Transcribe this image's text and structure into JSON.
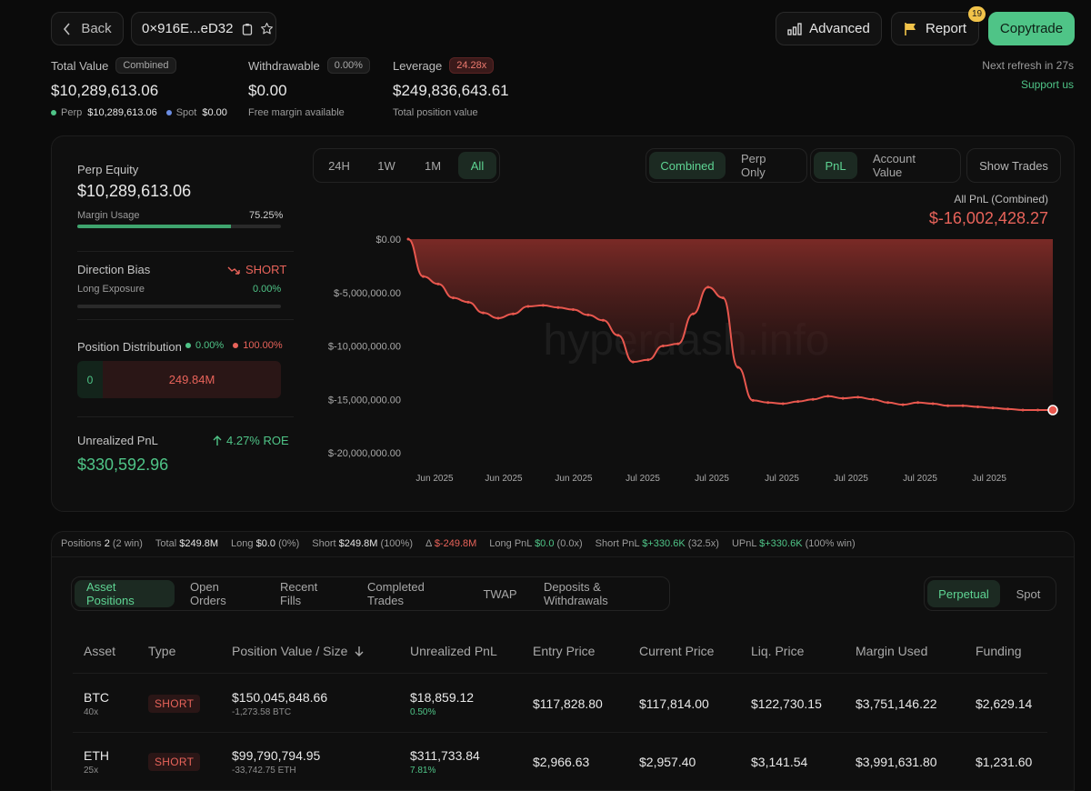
{
  "header": {
    "back_label": "Back",
    "address": "0×916E...eD32",
    "advanced_label": "Advanced",
    "report_label": "Report",
    "report_count": "19",
    "copytrade_label": "Copytrade",
    "next_refresh": "Next refresh in 27s",
    "support": "Support us"
  },
  "summary": {
    "total_value_label": "Total Value",
    "total_value_badge": "Combined",
    "total_value": "$10,289,613.06",
    "perp_label": "Perp",
    "perp_value": "$10,289,613.06",
    "spot_label": "Spot",
    "spot_value": "$0.00",
    "withdrawable_label": "Withdrawable",
    "withdrawable_badge": "0.00%",
    "withdrawable_value": "$0.00",
    "withdrawable_sub": "Free margin available",
    "leverage_label": "Leverage",
    "leverage_badge": "24.28x",
    "leverage_value": "$249,836,643.61",
    "leverage_sub": "Total position value"
  },
  "side": {
    "perp_equity_label": "Perp Equity",
    "perp_equity_value": "$10,289,613.06",
    "margin_usage_label": "Margin Usage",
    "margin_usage_value": "75.25%",
    "margin_usage_fraction": 0.7525,
    "direction_bias_label": "Direction Bias",
    "direction_bias_value": "SHORT",
    "long_exposure_label": "Long Exposure",
    "long_exposure_value": "0.00%",
    "position_dist_label": "Position Distribution",
    "dist_long_pct": "0.00%",
    "dist_short_pct": "100.00%",
    "dist_long_value": "0",
    "dist_short_value": "249.84M",
    "unrealized_label": "Unrealized PnL",
    "roe": "4.27% ROE",
    "unrealized_value": "$330,592.96"
  },
  "chart_controls": {
    "ranges": [
      "24H",
      "1W",
      "1M",
      "All"
    ],
    "active_range": "All",
    "modes": [
      "Combined",
      "Perp Only"
    ],
    "active_mode": "Combined",
    "metrics": [
      "PnL",
      "Account Value"
    ],
    "active_metric": "PnL",
    "show_trades": "Show Trades"
  },
  "chart_data": {
    "type": "area",
    "title": "All PnL (Combined)",
    "headline_value": "$-16,002,428.27",
    "y_ticks": [
      "$0.00",
      "$-5,000,000.00",
      "$-10,000,000.00",
      "$-15,000,000.00",
      "$-20,000,000.00"
    ],
    "ylim": [
      -20000000,
      0
    ],
    "x_ticks": [
      "Jun 2025",
      "Jun 2025",
      "Jun 2025",
      "Jul 2025",
      "Jul 2025",
      "Jul 2025",
      "Jul 2025",
      "Jul 2025",
      "Jul 2025"
    ],
    "watermark": "hyperdash.info",
    "colors": {
      "line": "#e8574e",
      "fill_top": "#7a2a26",
      "fill_bottom": "#1a0f0f"
    },
    "series": [
      {
        "values": [
          0,
          -3500000,
          -4200000,
          -5500000,
          -5900000,
          -6900000,
          -7400000,
          -7000000,
          -6300000,
          -6200000,
          -6400000,
          -6600000,
          -7100000,
          -7600000,
          -9000000,
          -11500000,
          -11300000,
          -10000000,
          -9800000,
          -7000000,
          -4500000,
          -5500000,
          -12000000,
          -15100000,
          -15300000,
          -15400000,
          -15200000,
          -15000000,
          -14700000,
          -14900000,
          -14800000,
          -15000000,
          -15300000,
          -15500000,
          -15300000,
          -15400000,
          -15600000,
          -15600000,
          -15700000,
          -15800000,
          -15900000,
          -16000000,
          -16000000,
          -16002428
        ]
      }
    ]
  },
  "stats": {
    "positions_label": "Positions",
    "positions_count": "2",
    "positions_win": "(2 win)",
    "total_label": "Total",
    "total_value": "$249.8M",
    "long_label": "Long",
    "long_value": "$0.0",
    "long_pct": "(0%)",
    "short_label": "Short",
    "short_value": "$249.8M",
    "short_pct": "(100%)",
    "delta_label": "Δ",
    "delta_value": "$-249.8M",
    "long_pnl_label": "Long PnL",
    "long_pnl_value": "$0.0",
    "long_pnl_x": "(0.0x)",
    "short_pnl_label": "Short PnL",
    "short_pnl_value": "$+330.6K",
    "short_pnl_x": "(32.5x)",
    "upnl_label": "UPnL",
    "upnl_value": "$+330.6K",
    "upnl_win": "(100% win)"
  },
  "tabs": {
    "items": [
      "Asset Positions",
      "Open Orders",
      "Recent Fills",
      "Completed Trades",
      "TWAP",
      "Deposits & Withdrawals"
    ],
    "active": "Asset Positions",
    "market_items": [
      "Perpetual",
      "Spot"
    ],
    "market_active": "Perpetual"
  },
  "table": {
    "headers": [
      "Asset",
      "Type",
      "Position Value / Size",
      "Unrealized PnL",
      "Entry Price",
      "Current Price",
      "Liq. Price",
      "Margin Used",
      "Funding"
    ],
    "rows": [
      {
        "asset": "BTC",
        "lev": "40x",
        "type": "SHORT",
        "value": "$150,045,848.66",
        "size": "-1,273.58 BTC",
        "upnl": "$18,859.12",
        "upnl_pct": "0.50%",
        "entry": "$117,828.80",
        "current": "$117,814.00",
        "liq": "$122,730.15",
        "margin": "$3,751,146.22",
        "funding": "$2,629.14"
      },
      {
        "asset": "ETH",
        "lev": "25x",
        "type": "SHORT",
        "value": "$99,790,794.95",
        "size": "-33,742.75 ETH",
        "upnl": "$311,733.84",
        "upnl_pct": "7.81%",
        "entry": "$2,966.63",
        "current": "$2,957.40",
        "liq": "$3,141.54",
        "margin": "$3,991,631.80",
        "funding": "$1,231.60"
      }
    ]
  }
}
